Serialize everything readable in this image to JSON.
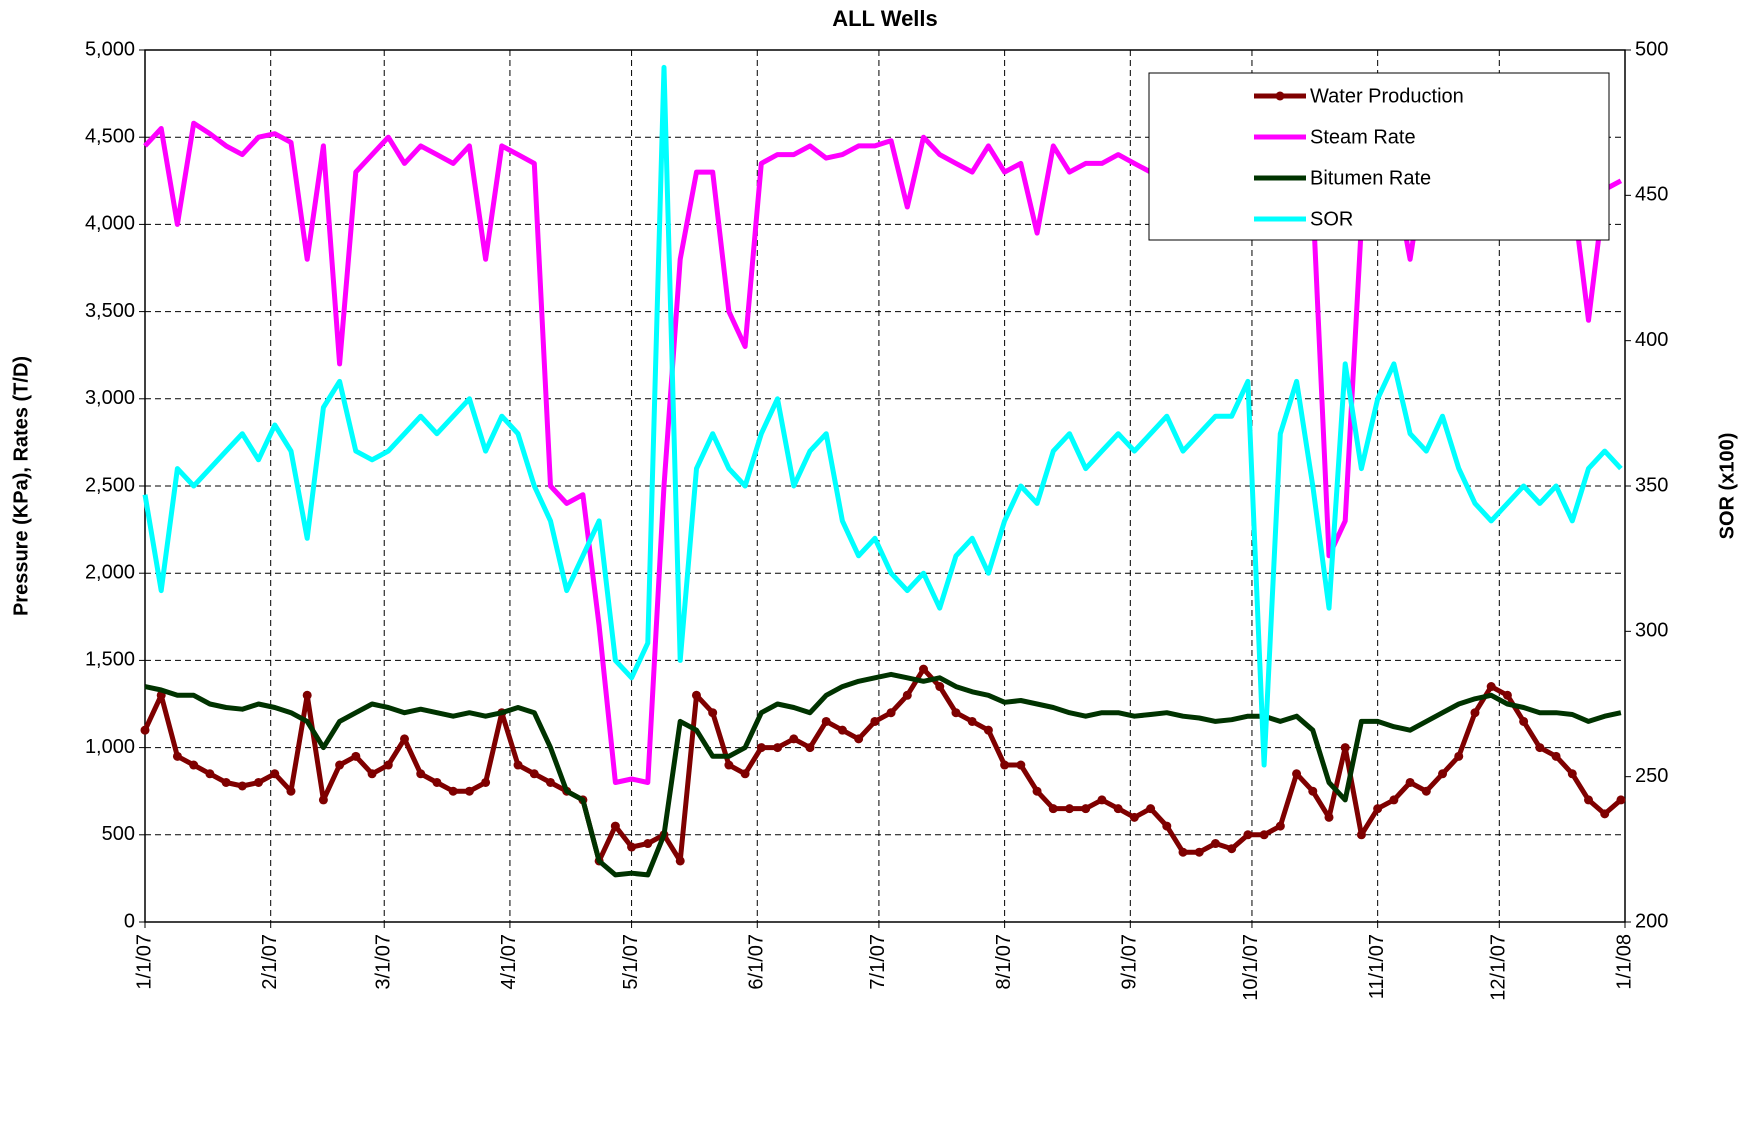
{
  "chart_data": {
    "type": "line",
    "title": "ALL Wells",
    "y_label": "Pressure (KPa), Rates (T/D)",
    "y2_label": "SOR (x100)",
    "x": [
      "1/1/07",
      "1/5/07",
      "1/9/07",
      "1/13/07",
      "1/17/07",
      "1/21/07",
      "1/25/07",
      "1/29/07",
      "2/2/07",
      "2/6/07",
      "2/10/07",
      "2/14/07",
      "2/18/07",
      "2/22/07",
      "2/26/07",
      "3/2/07",
      "3/6/07",
      "3/10/07",
      "3/14/07",
      "3/18/07",
      "3/22/07",
      "3/26/07",
      "3/30/07",
      "4/3/07",
      "4/7/07",
      "4/11/07",
      "4/15/07",
      "4/19/07",
      "4/23/07",
      "4/27/07",
      "5/1/07",
      "5/5/07",
      "5/9/07",
      "5/13/07",
      "5/17/07",
      "5/21/07",
      "5/25/07",
      "5/29/07",
      "6/2/07",
      "6/6/07",
      "6/10/07",
      "6/14/07",
      "6/18/07",
      "6/22/07",
      "6/26/07",
      "6/30/07",
      "7/4/07",
      "7/8/07",
      "7/12/07",
      "7/16/07",
      "7/20/07",
      "7/24/07",
      "7/28/07",
      "8/1/07",
      "8/5/07",
      "8/9/07",
      "8/13/07",
      "8/17/07",
      "8/21/07",
      "8/25/07",
      "8/29/07",
      "9/2/07",
      "9/6/07",
      "9/10/07",
      "9/14/07",
      "9/18/07",
      "9/22/07",
      "9/26/07",
      "9/30/07",
      "10/4/07",
      "10/8/07",
      "10/12/07",
      "10/16/07",
      "10/20/07",
      "10/24/07",
      "10/28/07",
      "11/1/07",
      "11/5/07",
      "11/9/07",
      "11/13/07",
      "11/17/07",
      "11/21/07",
      "11/25/07",
      "11/29/07",
      "12/3/07",
      "12/7/07",
      "12/11/07",
      "12/15/07",
      "12/19/07",
      "12/23/07",
      "12/27/07",
      "12/31/07"
    ],
    "series": [
      {
        "name": "Water Production",
        "color": "#7f0000",
        "marker": "circle",
        "values": [
          1100,
          1300,
          950,
          900,
          850,
          800,
          780,
          800,
          850,
          750,
          1300,
          700,
          900,
          950,
          850,
          900,
          1050,
          850,
          800,
          750,
          750,
          800,
          1200,
          900,
          850,
          800,
          750,
          700,
          350,
          550,
          430,
          450,
          500,
          350,
          1300,
          1200,
          900,
          850,
          1000,
          1000,
          1050,
          1000,
          1150,
          1100,
          1050,
          1150,
          1200,
          1300,
          1450,
          1350,
          1200,
          1150,
          1100,
          900,
          900,
          750,
          650,
          650,
          650,
          700,
          650,
          600,
          650,
          550,
          400,
          400,
          450,
          420,
          500,
          500,
          550,
          850,
          750,
          600,
          1000,
          500,
          650,
          700,
          800,
          750,
          850,
          950,
          1200,
          1350,
          1300,
          1150,
          1000,
          950,
          850,
          700,
          620,
          700
        ]
      },
      {
        "name": "Steam Rate",
        "color": "#ff00ff",
        "values": [
          4450,
          4550,
          4000,
          4580,
          4520,
          4450,
          4400,
          4500,
          4520,
          4470,
          3800,
          4450,
          3200,
          4300,
          4400,
          4500,
          4350,
          4450,
          4400,
          4350,
          4450,
          3800,
          4450,
          4400,
          4350,
          2500,
          2400,
          2450,
          1700,
          800,
          820,
          800,
          2500,
          3800,
          4300,
          4300,
          3500,
          3300,
          4350,
          4400,
          4400,
          4450,
          4380,
          4400,
          4450,
          4450,
          4480,
          4100,
          4500,
          4400,
          4350,
          4300,
          4450,
          4300,
          4350,
          3950,
          4450,
          4300,
          4350,
          4350,
          4400,
          4350,
          4300,
          4350,
          4320,
          4350,
          4300,
          4300,
          4300,
          4300,
          4350,
          4300,
          4150,
          2100,
          2300,
          4000,
          4350,
          4300,
          3800,
          4400,
          4350,
          4350,
          4380,
          4250,
          4250,
          4250,
          4200,
          4230,
          4200,
          3450,
          4200,
          4250
        ]
      },
      {
        "name": "Bitumen Rate",
        "color": "#003300",
        "values": [
          1350,
          1330,
          1300,
          1300,
          1250,
          1230,
          1220,
          1250,
          1230,
          1200,
          1150,
          1000,
          1150,
          1200,
          1250,
          1230,
          1200,
          1220,
          1200,
          1180,
          1200,
          1180,
          1200,
          1230,
          1200,
          1000,
          750,
          700,
          350,
          270,
          280,
          270,
          500,
          1150,
          1100,
          950,
          950,
          1000,
          1200,
          1250,
          1230,
          1200,
          1300,
          1350,
          1380,
          1400,
          1420,
          1400,
          1380,
          1400,
          1350,
          1320,
          1300,
          1260,
          1270,
          1250,
          1230,
          1200,
          1180,
          1200,
          1200,
          1180,
          1190,
          1200,
          1180,
          1170,
          1150,
          1160,
          1180,
          1180,
          1150,
          1180,
          1100,
          800,
          700,
          1150,
          1150,
          1120,
          1100,
          1150,
          1200,
          1250,
          1280,
          1300,
          1250,
          1230,
          1200,
          1200,
          1190,
          1150,
          1180,
          1200
        ]
      },
      {
        "name": "SOR",
        "color": "#00ffff",
        "axis": "y2",
        "values": [
          347,
          314,
          356,
          350,
          356,
          362,
          368,
          359,
          371,
          362,
          332,
          377,
          386,
          362,
          359,
          362,
          368,
          374,
          368,
          374,
          380,
          362,
          374,
          368,
          350,
          338,
          314,
          326,
          338,
          290,
          284,
          296,
          494,
          290,
          356,
          368,
          356,
          350,
          368,
          380,
          350,
          362,
          368,
          338,
          326,
          332,
          320,
          314,
          320,
          308,
          326,
          332,
          320,
          338,
          350,
          344,
          362,
          368,
          356,
          362,
          368,
          362,
          368,
          374,
          362,
          368,
          374,
          374,
          386,
          254,
          368,
          386,
          350,
          308,
          392,
          356,
          380,
          392,
          368,
          362,
          374,
          356,
          344,
          338,
          344,
          350,
          344,
          350,
          338,
          356,
          362,
          356
        ]
      }
    ],
    "xlim": [
      "1/1/07",
      "1/1/08"
    ],
    "xticks": [
      "1/1/07",
      "2/1/07",
      "3/1/07",
      "4/1/07",
      "5/1/07",
      "6/1/07",
      "7/1/07",
      "8/1/07",
      "9/1/07",
      "10/1/07",
      "11/1/07",
      "12/1/07",
      "1/1/08"
    ],
    "ylim": [
      0,
      5000
    ],
    "yticks": [
      0,
      500,
      {
        "value": 1000,
        "label": "1,000"
      },
      {
        "value": 1500,
        "label": "1,500"
      },
      {
        "value": 2000,
        "label": "2,000"
      },
      {
        "value": 2500,
        "label": "2,500"
      },
      {
        "value": 3000,
        "label": "3,000"
      },
      {
        "value": 3500,
        "label": "3,500"
      },
      {
        "value": 4000,
        "label": "4,000"
      },
      {
        "value": 4500,
        "label": "4,500"
      },
      {
        "value": 5000,
        "label": "5,000"
      }
    ],
    "y2lim": [
      200,
      500
    ],
    "y2ticks": [
      200,
      250,
      300,
      350,
      400,
      450,
      500
    ],
    "grid": true,
    "legend": "upper right"
  }
}
